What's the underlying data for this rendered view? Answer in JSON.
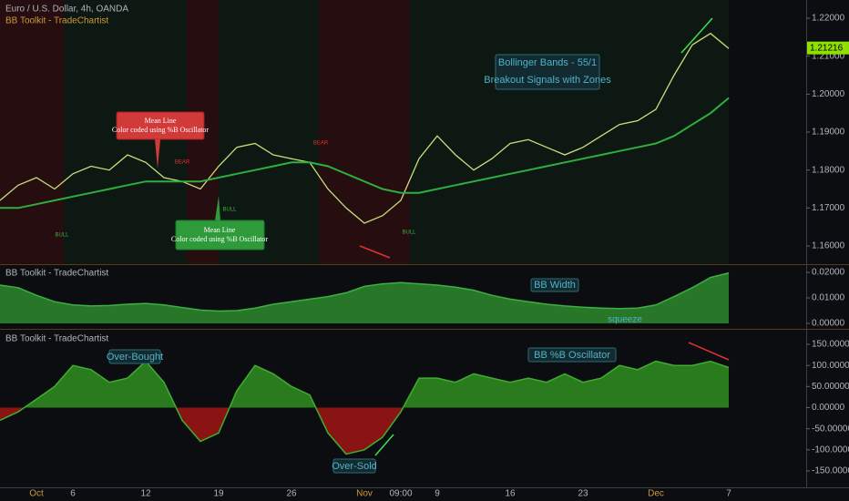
{
  "chart_data": [
    {
      "type": "line",
      "title": "Euro / U.S. Dollar, 4h, OANDA",
      "subtitle": "BB Toolkit - TradeChartist",
      "ylim": [
        1.1552,
        1.2248
      ],
      "yticks": [
        {
          "value": 1.16,
          "label": "1.16000"
        },
        {
          "value": 1.17,
          "label": "1.17000"
        },
        {
          "value": 1.18,
          "label": "1.18000"
        },
        {
          "value": 1.19,
          "label": "1.19000"
        },
        {
          "value": 1.2,
          "label": "1.20000"
        },
        {
          "value": 1.21,
          "label": "1.21000"
        },
        {
          "value": 1.22,
          "label": "1.22000"
        }
      ],
      "last_price": {
        "value": 1.21216,
        "label": "1.21216"
      },
      "series": [
        {
          "name": "Price",
          "color": "#c8e07a",
          "values": [
            1.172,
            1.176,
            1.178,
            1.175,
            1.179,
            1.181,
            1.18,
            1.184,
            1.182,
            1.178,
            1.177,
            1.175,
            1.181,
            1.186,
            1.187,
            1.184,
            1.183,
            1.182,
            1.175,
            1.17,
            1.166,
            1.168,
            1.172,
            1.183,
            1.189,
            1.184,
            1.18,
            1.183,
            1.187,
            1.188,
            1.186,
            1.184,
            1.186,
            1.189,
            1.192,
            1.193,
            1.196,
            1.205,
            1.213,
            1.216,
            1.212
          ]
        },
        {
          "name": "Mean Line",
          "color": "#2fae3f",
          "values": [
            1.17,
            1.17,
            1.171,
            1.172,
            1.173,
            1.174,
            1.175,
            1.176,
            1.177,
            1.177,
            1.177,
            1.177,
            1.178,
            1.179,
            1.18,
            1.181,
            1.182,
            1.182,
            1.181,
            1.179,
            1.177,
            1.175,
            1.174,
            1.174,
            1.175,
            1.176,
            1.177,
            1.178,
            1.179,
            1.18,
            1.181,
            1.182,
            1.183,
            1.184,
            1.185,
            1.186,
            1.187,
            1.189,
            1.192,
            1.195,
            1.199
          ]
        }
      ],
      "annotations": [
        "BULL",
        "BEAR",
        "BULL",
        "BEAR",
        "BULL",
        "Mean Line",
        "Color coded using %B Oscillator",
        "Mean Line",
        "Color coded using %B Oscillator",
        "Bollinger Bands - 55/1",
        "Breakout Signals with Zones"
      ]
    },
    {
      "type": "area",
      "title": "BB Toolkit - TradeChartist",
      "ylim": [
        -0.0018,
        0.0225
      ],
      "yticks": [
        {
          "value": 0,
          "label": "0.00000"
        },
        {
          "value": 0.01,
          "label": "0.01000"
        },
        {
          "value": 0.02,
          "label": "0.02000"
        }
      ],
      "series": [
        {
          "name": "BB Width",
          "color": "#2e8b2e",
          "values": [
            0.015,
            0.014,
            0.011,
            0.0085,
            0.0072,
            0.0068,
            0.007,
            0.0075,
            0.0078,
            0.0072,
            0.0062,
            0.0052,
            0.0048,
            0.005,
            0.006,
            0.0075,
            0.0085,
            0.0095,
            0.0105,
            0.012,
            0.0145,
            0.0155,
            0.016,
            0.0155,
            0.015,
            0.0142,
            0.013,
            0.011,
            0.0095,
            0.0085,
            0.0075,
            0.0068,
            0.0063,
            0.006,
            0.0058,
            0.006,
            0.0072,
            0.0105,
            0.014,
            0.018,
            0.0198
          ]
        }
      ],
      "annotations": [
        "BB Width",
        "squeeze"
      ]
    },
    {
      "type": "area",
      "title": "BB Toolkit - TradeChartist",
      "ylim": [
        -188.9,
        184.6
      ],
      "yticks": [
        {
          "value": -150,
          "label": "-150.00000"
        },
        {
          "value": -100,
          "label": "-100.00000"
        },
        {
          "value": -50,
          "label": "-50.00000"
        },
        {
          "value": 0,
          "label": "0.00000"
        },
        {
          "value": 50,
          "label": "50.00000"
        },
        {
          "value": 100,
          "label": "100.00000"
        },
        {
          "value": 150,
          "label": "150.00000"
        }
      ],
      "categories": [
        null,
        null,
        "Oct",
        null,
        "6",
        null,
        null,
        null,
        "12",
        null,
        null,
        null,
        "19",
        null,
        null,
        null,
        "26",
        null,
        null,
        null,
        "Nov",
        null,
        "09:00",
        null,
        "9",
        null,
        null,
        null,
        "16",
        null,
        null,
        null,
        "23",
        null,
        null,
        null,
        "Dec",
        null,
        null,
        null,
        "7"
      ],
      "series": [
        {
          "name": "BB %B Oscillator",
          "color": "#2a7a1e",
          "values": [
            -30,
            -10,
            20,
            50,
            100,
            90,
            60,
            70,
            110,
            60,
            -30,
            -80,
            -60,
            40,
            100,
            80,
            50,
            30,
            -60,
            -110,
            -100,
            -70,
            -10,
            70,
            70,
            60,
            80,
            70,
            60,
            70,
            60,
            80,
            60,
            70,
            100,
            90,
            110,
            100,
            100,
            110,
            95
          ]
        }
      ],
      "annotations": [
        "Over-Bought",
        "Over-Sold"
      ]
    }
  ]
}
